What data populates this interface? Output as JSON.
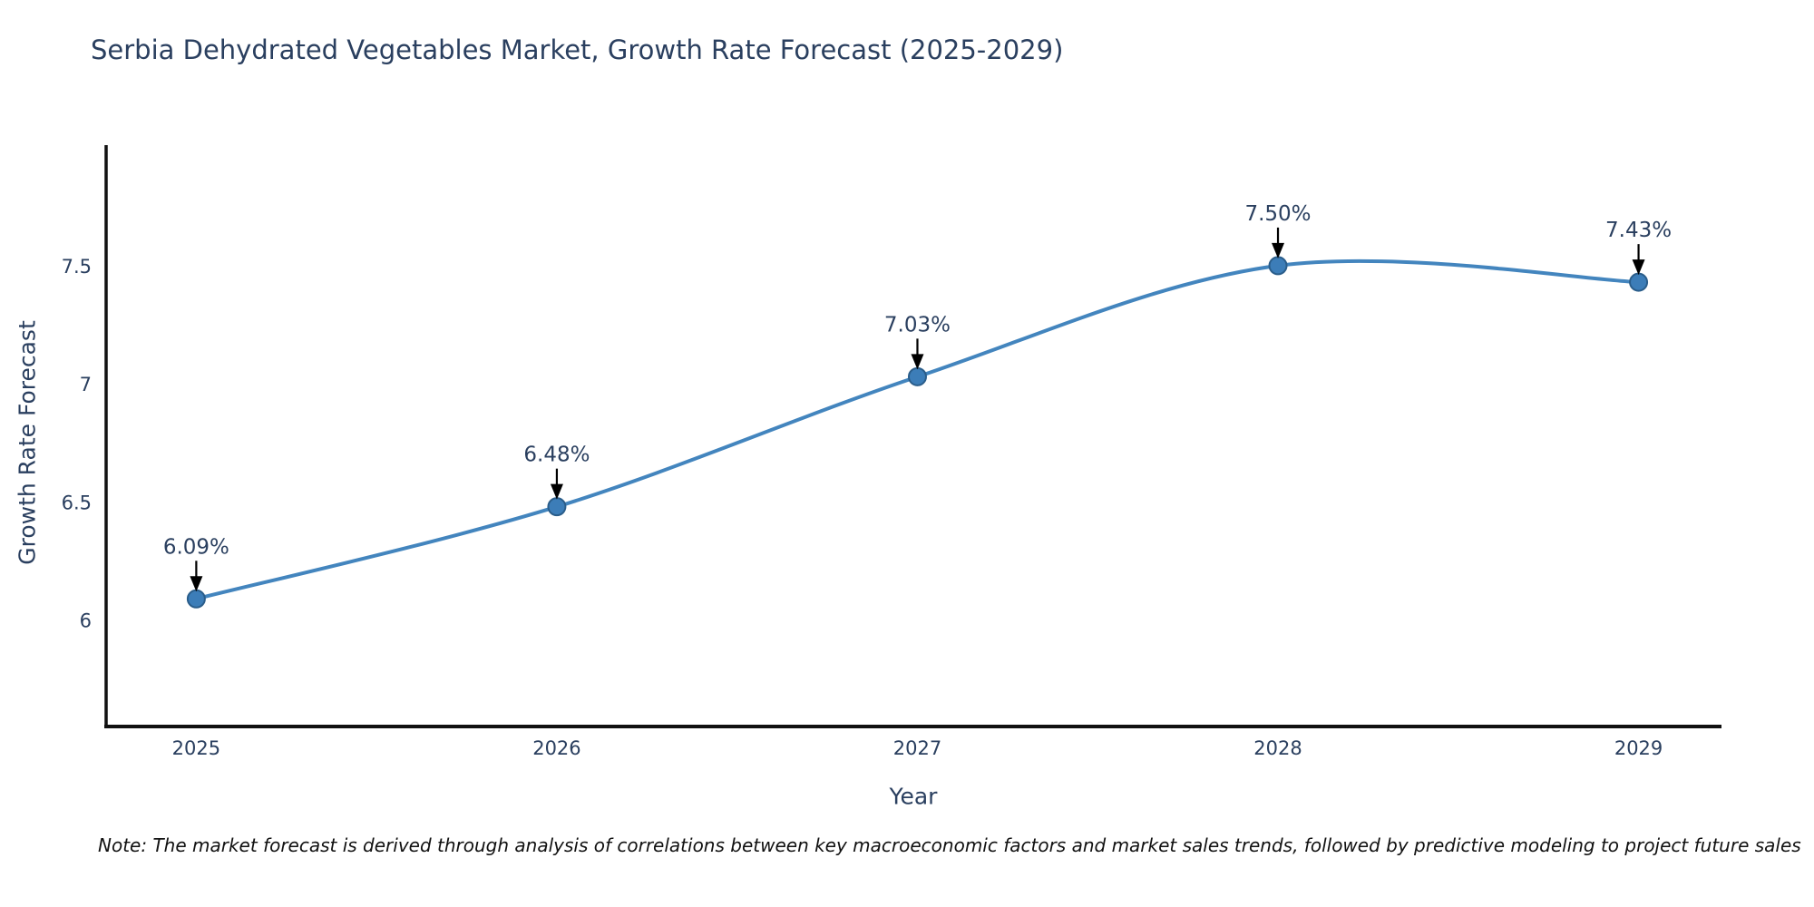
{
  "title": "Serbia Dehydrated Vegetables Market, Growth Rate Forecast (2025-2029)",
  "note": "Note: The market forecast is derived through analysis of correlations between key macroeconomic factors and market sales trends, followed by predictive modeling to project future sales",
  "chart_data": {
    "type": "line",
    "title": "Serbia Dehydrated Vegetables Market, Growth Rate Forecast (2025-2029)",
    "xlabel": "Year",
    "ylabel": "Growth Rate Forecast",
    "categories": [
      2025,
      2026,
      2027,
      2028,
      2029
    ],
    "values": [
      6.09,
      6.48,
      7.03,
      7.5,
      7.43
    ],
    "point_labels": [
      "6.09%",
      "6.48%",
      "7.03%",
      "7.50%",
      "7.43%"
    ],
    "yticks": [
      6,
      6.5,
      7,
      7.5
    ],
    "ylim": [
      5.55,
      8.01
    ],
    "xlim": [
      2024.75,
      2029.23
    ],
    "line_shape": "spline",
    "grid": false,
    "legend_position": "none",
    "colors": {
      "line": "#4385be",
      "marker_fill": "#3c7db8",
      "marker_stroke": "#2a5d8a",
      "axis": "#111111",
      "annotation_arrow": "#000000",
      "text": "#2a3f5f",
      "note_text": "#111111",
      "background": "#ffffff"
    }
  }
}
